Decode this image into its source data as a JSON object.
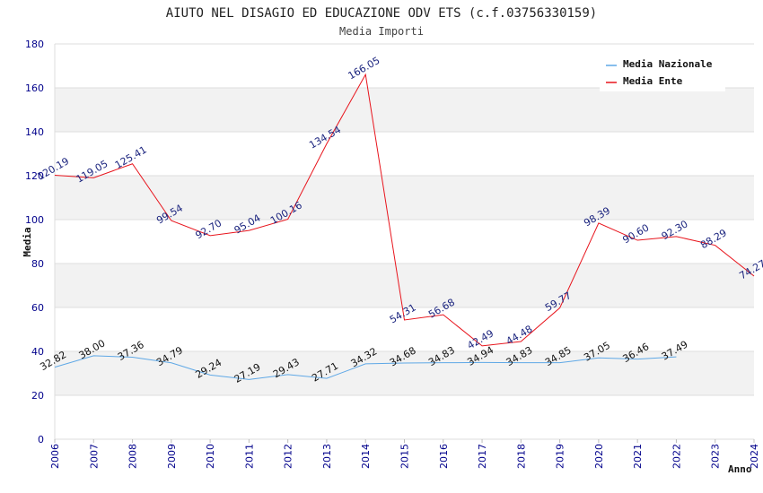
{
  "chart_data": {
    "type": "line",
    "title": "AIUTO NEL DISAGIO ED EDUCAZIONE ODV ETS (c.f.03756330159)",
    "subtitle": "Media Importi",
    "ylabel": "Media",
    "xlabel": "Anno",
    "x": [
      "2006",
      "2007",
      "2008",
      "2009",
      "2010",
      "2011",
      "2012",
      "2013",
      "2014",
      "2015",
      "2016",
      "2017",
      "2018",
      "2019",
      "2020",
      "2021",
      "2022",
      "2023",
      "2024"
    ],
    "ylim": [
      0,
      180
    ],
    "yticks": [
      0,
      20,
      40,
      60,
      80,
      100,
      120,
      140,
      160,
      180
    ],
    "grid": true,
    "legend_position": "top-right",
    "series": [
      {
        "name": "Media Nazionale",
        "color": "#5fa8e6",
        "label_color": "#111111",
        "values": [
          32.82,
          38.0,
          37.36,
          34.79,
          29.24,
          27.19,
          29.43,
          27.71,
          34.32,
          34.68,
          34.83,
          34.94,
          34.83,
          34.85,
          37.05,
          36.46,
          37.49,
          null,
          null
        ],
        "labels": [
          "32.82",
          "38.00",
          "37.36",
          "34.79",
          "29.24",
          "27.19",
          "29.43",
          "27.71",
          "34.32",
          "34.68",
          "34.83",
          "34.94",
          "34.83",
          "34.85",
          "37.05",
          "36.46",
          "37.49",
          null,
          null
        ]
      },
      {
        "name": "Media Ente",
        "color": "#e8141c",
        "label_color": "#1a237e",
        "values": [
          120.19,
          119.05,
          125.41,
          99.54,
          92.7,
          95.04,
          100.16,
          134.54,
          166.05,
          54.31,
          56.68,
          42.49,
          44.48,
          59.77,
          98.39,
          90.6,
          92.3,
          88.29,
          74.27
        ],
        "labels": [
          "120.19",
          "119.05",
          "125.41",
          "99.54",
          "92.70",
          "95.04",
          "100.16",
          "134.54",
          "166.05",
          "54.31",
          "56.68",
          "42.49",
          "44.48",
          "59.77",
          "98.39",
          "90.60",
          "92.30",
          "88.29",
          "74.27"
        ]
      }
    ]
  }
}
